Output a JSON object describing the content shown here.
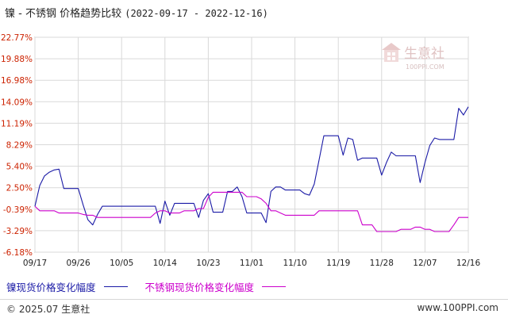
{
  "header": {
    "title": "镍 - 不锈钢 价格趋势比较",
    "date_range": "(2022-09-17 - 2022-12-16)"
  },
  "watermark": {
    "brand": "生意社",
    "url": "100PPI.COM",
    "icon": "house-logo-icon"
  },
  "footer": {
    "copyright": "© 2025.07 生意社",
    "site": "www.100PPI.com"
  },
  "colors": {
    "nickel": "#1a1aa6",
    "stainless": "#cc00cc",
    "grid": "#d9d9d9",
    "axis": "#888888",
    "ytick": "#cc2200"
  },
  "chart_data": {
    "type": "line",
    "x_ticks": [
      "09/17",
      "09/26",
      "10/05",
      "10/14",
      "10/23",
      "11/01",
      "11/10",
      "11/19",
      "11/28",
      "12/07",
      "12/16"
    ],
    "y_ticks": [
      "22.77%",
      "19.88%",
      "16.98%",
      "14.09%",
      "11.19%",
      "8.29%",
      "5.40%",
      "2.50%",
      "-0.39%",
      "-3.29%",
      "-6.18%"
    ],
    "ylim": [
      -6.18,
      22.77
    ],
    "x_range_days": [
      0,
      90
    ],
    "grid": true,
    "legend_position": "bottom-left",
    "series": [
      {
        "name": "镍现货价格变化幅度",
        "color": "#1a1aa6",
        "points": [
          [
            0,
            0
          ],
          [
            1,
            2.8
          ],
          [
            2,
            4.1
          ],
          [
            3,
            4.6
          ],
          [
            4,
            4.9
          ],
          [
            5,
            5.0
          ],
          [
            6,
            2.4
          ],
          [
            7,
            2.4
          ],
          [
            8,
            2.4
          ],
          [
            9,
            2.4
          ],
          [
            10,
            0.2
          ],
          [
            11,
            -1.8
          ],
          [
            12,
            -2.5
          ],
          [
            13,
            -1.1
          ],
          [
            14,
            0
          ],
          [
            15,
            0
          ],
          [
            16,
            0
          ],
          [
            17,
            0
          ],
          [
            18,
            0
          ],
          [
            19,
            0
          ],
          [
            20,
            0
          ],
          [
            21,
            0
          ],
          [
            22,
            0
          ],
          [
            23,
            0
          ],
          [
            24,
            0
          ],
          [
            25,
            0
          ],
          [
            26,
            -2.3
          ],
          [
            27,
            0.7
          ],
          [
            28,
            -1.2
          ],
          [
            29,
            0.4
          ],
          [
            30,
            0.4
          ],
          [
            31,
            0.4
          ],
          [
            32,
            0.4
          ],
          [
            33,
            0.4
          ],
          [
            34,
            -1.5
          ],
          [
            35,
            0.8
          ],
          [
            36,
            1.7
          ],
          [
            37,
            -0.8
          ],
          [
            38,
            -0.8
          ],
          [
            39,
            -0.8
          ],
          [
            40,
            2.0
          ],
          [
            41,
            2.0
          ],
          [
            42,
            2.6
          ],
          [
            43,
            1.3
          ],
          [
            44,
            -0.9
          ],
          [
            45,
            -0.9
          ],
          [
            46,
            -0.9
          ],
          [
            47,
            -0.9
          ],
          [
            48,
            -2.2
          ],
          [
            49,
            2.0
          ],
          [
            50,
            2.6
          ],
          [
            51,
            2.6
          ],
          [
            52,
            2.2
          ],
          [
            53,
            2.2
          ],
          [
            54,
            2.2
          ],
          [
            55,
            2.2
          ],
          [
            56,
            1.7
          ],
          [
            57,
            1.5
          ],
          [
            58,
            3.0
          ],
          [
            59,
            6.2
          ],
          [
            60,
            9.5
          ],
          [
            61,
            9.5
          ],
          [
            62,
            9.5
          ],
          [
            63,
            9.5
          ],
          [
            64,
            6.9
          ],
          [
            65,
            9.2
          ],
          [
            66,
            9.0
          ],
          [
            67,
            6.2
          ],
          [
            68,
            6.5
          ],
          [
            69,
            6.5
          ],
          [
            70,
            6.5
          ],
          [
            71,
            6.5
          ],
          [
            72,
            4.2
          ],
          [
            73,
            5.9
          ],
          [
            74,
            7.3
          ],
          [
            75,
            6.8
          ],
          [
            76,
            6.8
          ],
          [
            77,
            6.8
          ],
          [
            78,
            6.8
          ],
          [
            79,
            6.8
          ],
          [
            80,
            3.2
          ],
          [
            81,
            5.9
          ],
          [
            82,
            8.2
          ],
          [
            83,
            9.2
          ],
          [
            84,
            9.0
          ],
          [
            85,
            9.0
          ],
          [
            86,
            9.0
          ],
          [
            87,
            9.0
          ],
          [
            88,
            13.2
          ],
          [
            89,
            12.3
          ],
          [
            90,
            13.4
          ]
        ]
      },
      {
        "name": "不锈钢现货价格变化幅度",
        "color": "#cc00cc",
        "points": [
          [
            0,
            0
          ],
          [
            1,
            -0.6
          ],
          [
            2,
            -0.6
          ],
          [
            3,
            -0.6
          ],
          [
            4,
            -0.6
          ],
          [
            5,
            -0.9
          ],
          [
            6,
            -0.9
          ],
          [
            7,
            -0.9
          ],
          [
            8,
            -0.9
          ],
          [
            9,
            -0.9
          ],
          [
            10,
            -1.1
          ],
          [
            11,
            -1.2
          ],
          [
            12,
            -1.2
          ],
          [
            13,
            -1.5
          ],
          [
            14,
            -1.5
          ],
          [
            15,
            -1.5
          ],
          [
            16,
            -1.5
          ],
          [
            17,
            -1.5
          ],
          [
            18,
            -1.5
          ],
          [
            19,
            -1.5
          ],
          [
            20,
            -1.5
          ],
          [
            21,
            -1.5
          ],
          [
            22,
            -1.5
          ],
          [
            23,
            -1.5
          ],
          [
            24,
            -1.5
          ],
          [
            25,
            -0.9
          ],
          [
            26,
            -0.6
          ],
          [
            27,
            -0.6
          ],
          [
            28,
            -0.9
          ],
          [
            29,
            -0.9
          ],
          [
            30,
            -0.9
          ],
          [
            31,
            -0.6
          ],
          [
            32,
            -0.6
          ],
          [
            33,
            -0.6
          ],
          [
            34,
            -0.3
          ],
          [
            35,
            -0.3
          ],
          [
            36,
            1.2
          ],
          [
            37,
            1.9
          ],
          [
            38,
            1.9
          ],
          [
            39,
            1.9
          ],
          [
            40,
            1.9
          ],
          [
            41,
            1.9
          ],
          [
            42,
            1.9
          ],
          [
            43,
            1.9
          ],
          [
            44,
            1.3
          ],
          [
            45,
            1.3
          ],
          [
            46,
            1.3
          ],
          [
            47,
            1.0
          ],
          [
            48,
            0.4
          ],
          [
            49,
            -0.6
          ],
          [
            50,
            -0.6
          ],
          [
            51,
            -0.9
          ],
          [
            52,
            -1.2
          ],
          [
            53,
            -1.2
          ],
          [
            54,
            -1.2
          ],
          [
            55,
            -1.2
          ],
          [
            56,
            -1.2
          ],
          [
            57,
            -1.2
          ],
          [
            58,
            -1.2
          ],
          [
            59,
            -0.6
          ],
          [
            60,
            -0.6
          ],
          [
            61,
            -0.6
          ],
          [
            62,
            -0.6
          ],
          [
            63,
            -0.6
          ],
          [
            64,
            -0.6
          ],
          [
            65,
            -0.6
          ],
          [
            66,
            -0.6
          ],
          [
            67,
            -0.6
          ],
          [
            68,
            -2.5
          ],
          [
            69,
            -2.5
          ],
          [
            70,
            -2.5
          ],
          [
            71,
            -3.4
          ],
          [
            72,
            -3.4
          ],
          [
            73,
            -3.4
          ],
          [
            74,
            -3.4
          ],
          [
            75,
            -3.4
          ],
          [
            76,
            -3.1
          ],
          [
            77,
            -3.1
          ],
          [
            78,
            -3.1
          ],
          [
            79,
            -2.8
          ],
          [
            80,
            -2.8
          ],
          [
            81,
            -3.1
          ],
          [
            82,
            -3.1
          ],
          [
            83,
            -3.4
          ],
          [
            84,
            -3.4
          ],
          [
            85,
            -3.4
          ],
          [
            86,
            -3.4
          ],
          [
            87,
            -2.5
          ],
          [
            88,
            -1.5
          ],
          [
            89,
            -1.5
          ],
          [
            90,
            -1.5
          ]
        ]
      }
    ]
  }
}
